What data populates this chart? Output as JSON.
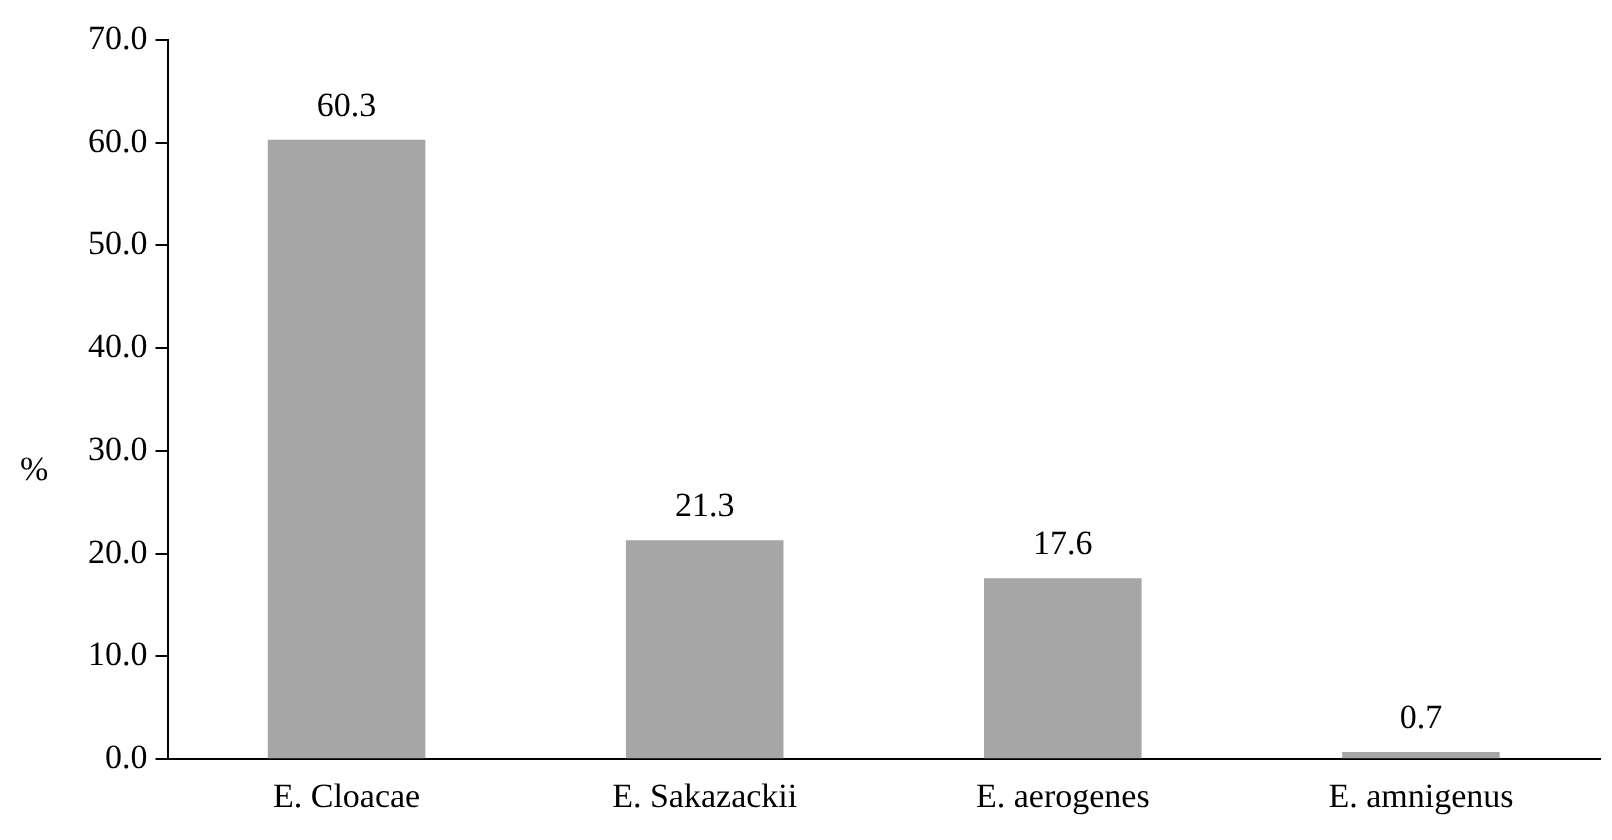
{
  "chart_data": {
    "type": "bar",
    "ylabel": "%",
    "categories": [
      "E. Cloacae",
      "E. Sakazackii",
      "E. aerogenes",
      "E. amnigenus"
    ],
    "values": [
      60.3,
      21.3,
      17.6,
      0.7
    ],
    "color": "#a6a6a6",
    "data_labels": true,
    "grid": false,
    "legend": false,
    "ylim": [
      0,
      70
    ],
    "yticks": [
      {
        "value": 0,
        "label": "0.0"
      },
      {
        "value": 10,
        "label": "10.0"
      },
      {
        "value": 20,
        "label": "20.0"
      },
      {
        "value": 30,
        "label": "30.0"
      },
      {
        "value": 40,
        "label": "40.0"
      },
      {
        "value": 50,
        "label": "50.0"
      },
      {
        "value": 60,
        "label": "60.0"
      },
      {
        "value": 70,
        "label": "70.0"
      }
    ]
  }
}
